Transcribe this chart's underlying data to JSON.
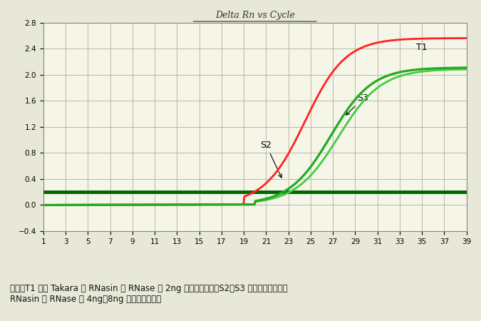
{
  "title": "Delta Rn vs Cycle",
  "fig_bg_color": "#e8e8d8",
  "plot_bg": "#f5f5e8",
  "xmin": 1,
  "xmax": 39,
  "ymin": -0.4,
  "ymax": 2.8,
  "yticks": [
    -0.4,
    0.0,
    0.4,
    0.8,
    1.2,
    1.6,
    2.0,
    2.4,
    2.8
  ],
  "xticks": [
    1,
    3,
    5,
    7,
    9,
    11,
    13,
    15,
    17,
    19,
    21,
    23,
    25,
    27,
    29,
    31,
    33,
    35,
    37,
    39
  ],
  "threshold_y": 0.2,
  "threshold_color": "#006600",
  "threshold_lw": 3.5,
  "T1_color": "#ff2222",
  "S2_color": "#44cc44",
  "S3_color": "#22aa22",
  "curve_lw": 2.0,
  "annotation_fontsize": 9,
  "T1_label": "T1",
  "S2_label": "S2",
  "S3_label": "S3",
  "caption_line1": "图七：T1 号为 Takara 的 RNasin 在 RNase 为 2ng 时的抑制效果，S2、S3 分别为新景生物的",
  "caption_line2": "RNasin 在 RNase 为 4ng、8ng 时的抑制效果。"
}
